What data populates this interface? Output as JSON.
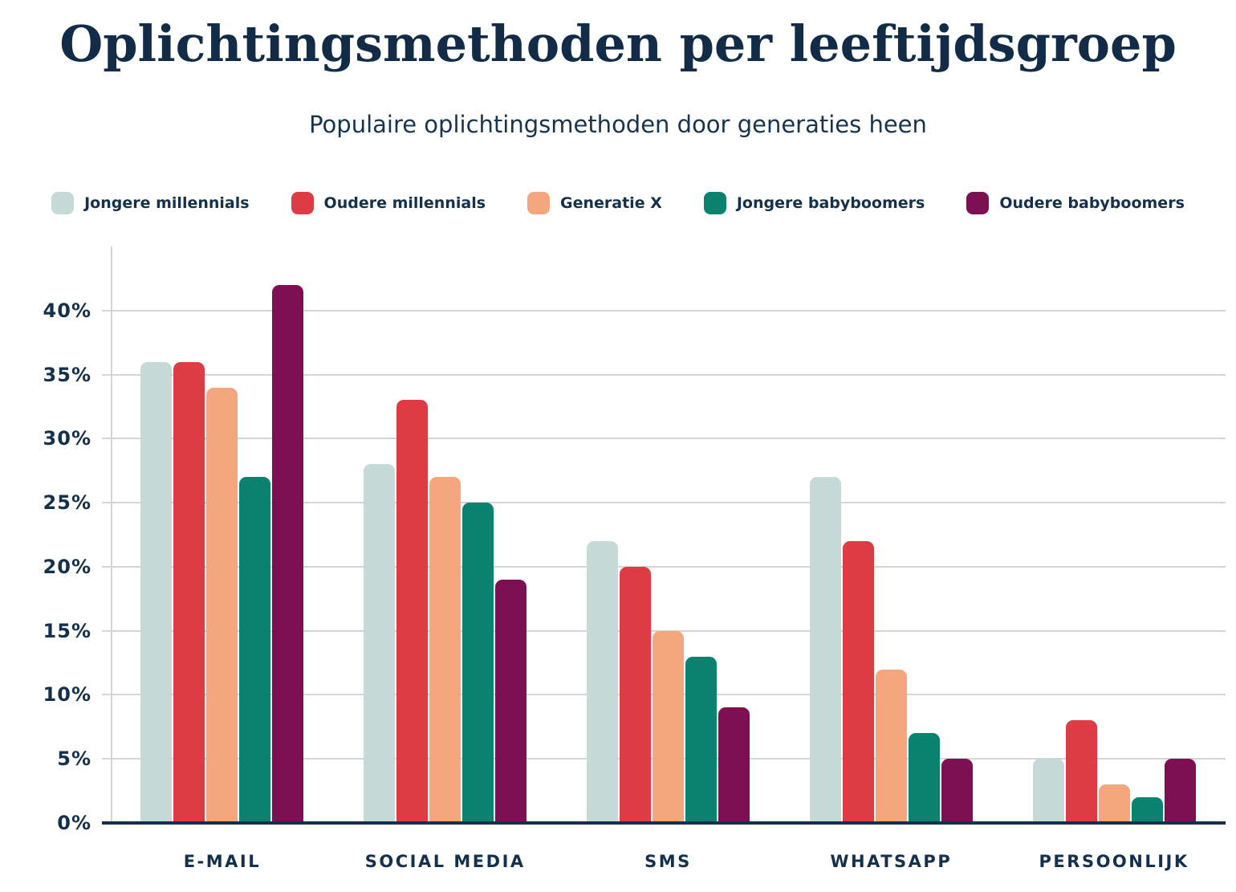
{
  "title": "Oplichtingsmethoden per leeftijdsgroep",
  "subtitle": "Populaire oplichtingsmethoden door generaties heen",
  "colors": {
    "background": "#ffffff",
    "text_navy": "#13304d",
    "title_navy": "#122c48",
    "gridline": "#d3d5d7",
    "axis_baseline": "#13304d"
  },
  "chart_data": {
    "type": "bar",
    "categories": [
      "E-MAIL",
      "SOCIAL MEDIA",
      "SMS",
      "WHATSAPP",
      "PERSOONLIJK"
    ],
    "series": [
      {
        "name": "Jongere millennials",
        "color": "#c5d9d7",
        "values": [
          36,
          28,
          22,
          27,
          5
        ]
      },
      {
        "name": "Oudere millennials",
        "color": "#dd3c45",
        "values": [
          36,
          33,
          20,
          22,
          8
        ]
      },
      {
        "name": "Generatie X",
        "color": "#f5a67c",
        "values": [
          34,
          27,
          15,
          12,
          3
        ]
      },
      {
        "name": "Jongere babyboomers",
        "color": "#0b8170",
        "values": [
          27,
          25,
          13,
          7,
          2
        ]
      },
      {
        "name": "Oudere babyboomers",
        "color": "#7d1053",
        "values": [
          42,
          19,
          9,
          5,
          5
        ]
      }
    ],
    "title": "Oplichtingsmethoden per leeftijdsgroep",
    "subtitle": "Populaire oplichtingsmethoden door generaties heen",
    "xlabel": "",
    "ylabel": "",
    "y_tick_labels": [
      "0%",
      "5%",
      "10%",
      "15%",
      "20%",
      "25%",
      "30%",
      "35%",
      "40%"
    ],
    "ylim": [
      0,
      45
    ],
    "grid": true,
    "legend_position": "top"
  }
}
